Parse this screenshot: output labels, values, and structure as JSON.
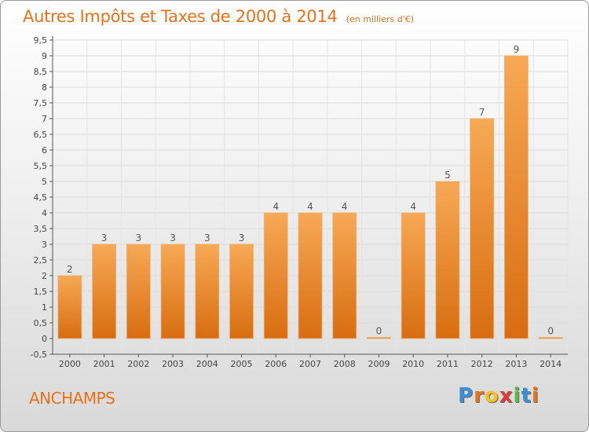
{
  "chart_data": {
    "type": "bar",
    "title": "Autres Impôts et Taxes de 2000 à 2014",
    "unit_note": "(en milliers d'€)",
    "categories": [
      "2000",
      "2001",
      "2002",
      "2003",
      "2004",
      "2005",
      "2006",
      "2007",
      "2008",
      "2009",
      "2010",
      "2011",
      "2012",
      "2013",
      "2014"
    ],
    "values": [
      2,
      3,
      3,
      3,
      3,
      3,
      4,
      4,
      4,
      0,
      4,
      5,
      7,
      9,
      0
    ],
    "ylim": [
      -0.5,
      9.5
    ],
    "yticks": [
      "-0,5",
      "0",
      "0,5",
      "1",
      "1,5",
      "2",
      "2,5",
      "3",
      "3,5",
      "4",
      "4,5",
      "5",
      "5,5",
      "6",
      "6,5",
      "7",
      "7,5",
      "8",
      "8,5",
      "9",
      "9,5"
    ],
    "grid": true,
    "bar_color": "#e8801f"
  },
  "footer": {
    "commune": "ANCHAMPS",
    "logo_letters": [
      "P",
      "r",
      "o",
      "x",
      "i",
      "t",
      "i"
    ],
    "logo_colors": [
      "#3b8fd6",
      "#e8711a",
      "#f4c220",
      "#e03a3a",
      "#5cb847",
      "#3b8fd6",
      "#e8711a"
    ]
  }
}
